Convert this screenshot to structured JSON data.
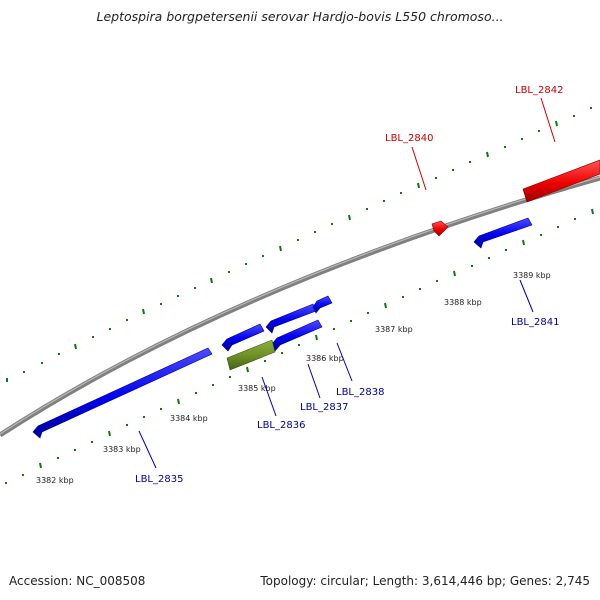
{
  "title": "Leptospira borgpetersenii serovar Hardjo-bovis L550 chromoso...",
  "footer": {
    "accession": "Accession: NC_008508",
    "summary": "Topology: circular; Length: 3,614,446 bp; Genes: 2,745"
  },
  "colors": {
    "forward_gene": "#ee0000",
    "reverse_gene": "#0000ee",
    "other_gene": "#6b8e23",
    "backbone": "#888888",
    "ticks": "#117711",
    "forward_label": "#cc0000",
    "reverse_label": "#000099"
  },
  "scale": {
    "unit": "kbp",
    "labels": [
      "3382 kbp",
      "3383 kbp",
      "3384 kbp",
      "3385 kbp",
      "3386 kbp",
      "3387 kbp",
      "3388 kbp",
      "3389 kbp"
    ]
  },
  "genes": [
    {
      "label": "LBL_2835",
      "strand": "reverse"
    },
    {
      "label": "LBL_2836",
      "strand": "reverse"
    },
    {
      "label": "LBL_2837",
      "strand": "reverse"
    },
    {
      "label": "LBL_2838",
      "strand": "reverse"
    },
    {
      "label": "LBL_2840",
      "strand": "forward"
    },
    {
      "label": "LBL_2841",
      "strand": "reverse"
    },
    {
      "label": "LBL_2842",
      "strand": "forward"
    }
  ]
}
